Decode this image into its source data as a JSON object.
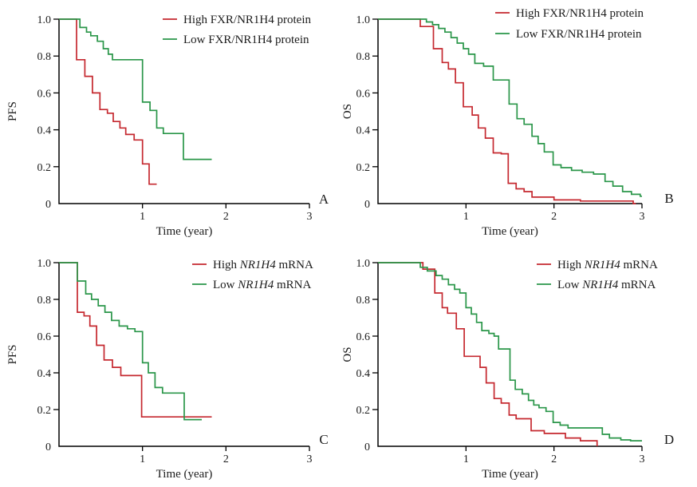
{
  "figure": {
    "background": "#ffffff",
    "axis_color": "#000000",
    "x_axis_label": "Time (year)",
    "series_colors": {
      "high": "#c5282f",
      "low": "#2a9649"
    }
  },
  "chart_data": [
    {
      "id": "A",
      "type": "line",
      "variant": "kaplan_meier_step",
      "panel_label": "A",
      "xlabel": "Time (year)",
      "ylabel": "PFS",
      "xlim": [
        0,
        3
      ],
      "ylim": [
        0,
        1
      ],
      "grid": false,
      "legend_position": "top-right-inside",
      "xticks": [
        "1",
        "2",
        "3"
      ],
      "yticks": [
        "0",
        "0.2",
        "0.4",
        "0.6",
        "0.8",
        "1.0"
      ],
      "legend": [
        {
          "name": "High FXR/NR1H4 protein",
          "color": "#c5282f",
          "parts": [
            {
              "text": "High FXR/NR1H4 protein",
              "italic": false
            }
          ]
        },
        {
          "name": "Low FXR/NR1H4 protein",
          "color": "#2a9649",
          "parts": [
            {
              "text": "Low FXR/NR1H4 protein",
              "italic": false
            }
          ]
        }
      ],
      "series": [
        {
          "key": "high",
          "name": "High FXR/NR1H4 protein",
          "color": "#c5282f",
          "end": 1.17,
          "points": [
            [
              0,
              1.0
            ],
            [
              0.21,
              0.78
            ],
            [
              0.31,
              0.69
            ],
            [
              0.4,
              0.6
            ],
            [
              0.49,
              0.51
            ],
            [
              0.58,
              0.49
            ],
            [
              0.65,
              0.445
            ],
            [
              0.73,
              0.41
            ],
            [
              0.8,
              0.375
            ],
            [
              0.9,
              0.345
            ],
            [
              1.0,
              0.215
            ],
            [
              1.08,
              0.105
            ]
          ]
        },
        {
          "key": "low",
          "name": "Low FXR/NR1H4 protein",
          "color": "#2a9649",
          "end": 1.83,
          "points": [
            [
              0,
              1.0
            ],
            [
              0.25,
              0.955
            ],
            [
              0.33,
              0.93
            ],
            [
              0.38,
              0.91
            ],
            [
              0.46,
              0.88
            ],
            [
              0.53,
              0.84
            ],
            [
              0.59,
              0.81
            ],
            [
              0.64,
              0.78
            ],
            [
              1.0,
              0.55
            ],
            [
              1.09,
              0.505
            ],
            [
              1.17,
              0.41
            ],
            [
              1.25,
              0.38
            ],
            [
              1.49,
              0.24
            ]
          ]
        }
      ]
    },
    {
      "id": "B",
      "type": "line",
      "variant": "kaplan_meier_step",
      "panel_label": "B",
      "xlabel": "Time (year)",
      "ylabel": "OS",
      "xlim": [
        0,
        3
      ],
      "ylim": [
        0,
        1
      ],
      "grid": false,
      "legend_position": "top-right-inside",
      "xticks": [
        "1",
        "2",
        "3"
      ],
      "yticks": [
        "0",
        "0.2",
        "0.4",
        "0.6",
        "0.8",
        "1.0"
      ],
      "legend": [
        {
          "name": "High FXR/NR1H4 protein",
          "color": "#c5282f",
          "parts": [
            {
              "text": "High FXR/NR1H4 protein",
              "italic": false
            }
          ]
        },
        {
          "name": "Low FXR/NR1H4 protein",
          "color": "#2a9649",
          "parts": [
            {
              "text": "Low FXR/NR1H4 protein",
              "italic": false
            }
          ]
        }
      ],
      "series": [
        {
          "key": "high",
          "name": "High FXR/NR1H4 protein",
          "color": "#c5282f",
          "end": 2.93,
          "points": [
            [
              0,
              1.0
            ],
            [
              0.48,
              0.96
            ],
            [
              0.63,
              0.84
            ],
            [
              0.73,
              0.765
            ],
            [
              0.8,
              0.73
            ],
            [
              0.88,
              0.655
            ],
            [
              0.97,
              0.525
            ],
            [
              1.07,
              0.48
            ],
            [
              1.14,
              0.41
            ],
            [
              1.22,
              0.355
            ],
            [
              1.31,
              0.275
            ],
            [
              1.4,
              0.27
            ],
            [
              1.48,
              0.11
            ],
            [
              1.57,
              0.08
            ],
            [
              1.66,
              0.065
            ],
            [
              1.75,
              0.035
            ],
            [
              2.0,
              0.02
            ],
            [
              2.3,
              0.014
            ],
            [
              2.9,
              0.0
            ]
          ]
        },
        {
          "key": "low",
          "name": "Low FXR/NR1H4 protein",
          "color": "#2a9649",
          "end": 3.0,
          "points": [
            [
              0,
              1.0
            ],
            [
              0.55,
              0.985
            ],
            [
              0.62,
              0.97
            ],
            [
              0.69,
              0.95
            ],
            [
              0.76,
              0.93
            ],
            [
              0.83,
              0.9
            ],
            [
              0.9,
              0.87
            ],
            [
              0.97,
              0.84
            ],
            [
              1.03,
              0.81
            ],
            [
              1.1,
              0.76
            ],
            [
              1.2,
              0.745
            ],
            [
              1.31,
              0.67
            ],
            [
              1.49,
              0.54
            ],
            [
              1.58,
              0.46
            ],
            [
              1.66,
              0.43
            ],
            [
              1.75,
              0.365
            ],
            [
              1.82,
              0.325
            ],
            [
              1.89,
              0.28
            ],
            [
              1.99,
              0.21
            ],
            [
              2.08,
              0.195
            ],
            [
              2.2,
              0.18
            ],
            [
              2.32,
              0.17
            ],
            [
              2.45,
              0.16
            ],
            [
              2.58,
              0.12
            ],
            [
              2.67,
              0.095
            ],
            [
              2.78,
              0.065
            ],
            [
              2.88,
              0.05
            ],
            [
              2.98,
              0.04
            ]
          ]
        }
      ]
    },
    {
      "id": "C",
      "type": "line",
      "variant": "kaplan_meier_step",
      "panel_label": "C",
      "xlabel": "Time (year)",
      "ylabel": "PFS",
      "xlim": [
        0,
        3
      ],
      "ylim": [
        0,
        1
      ],
      "grid": false,
      "legend_position": "top-right-inside",
      "xticks": [
        "1",
        "2",
        "3"
      ],
      "yticks": [
        "0",
        "0.2",
        "0.4",
        "0.6",
        "0.8",
        "1.0"
      ],
      "legend": [
        {
          "name": "High NR1H4 mRNA",
          "color": "#c5282f",
          "parts": [
            {
              "text": "High ",
              "italic": false
            },
            {
              "text": "NR1H4",
              "italic": true
            },
            {
              "text": " mRNA",
              "italic": false
            }
          ]
        },
        {
          "name": "Low NR1H4 mRNA",
          "color": "#2a9649",
          "parts": [
            {
              "text": "Low ",
              "italic": false
            },
            {
              "text": "NR1H4",
              "italic": true
            },
            {
              "text": " mRNA",
              "italic": false
            }
          ]
        }
      ],
      "series": [
        {
          "key": "high",
          "name": "High NR1H4 mRNA",
          "color": "#c5282f",
          "end": 1.83,
          "points": [
            [
              0,
              1.0
            ],
            [
              0.22,
              0.73
            ],
            [
              0.3,
              0.71
            ],
            [
              0.37,
              0.655
            ],
            [
              0.45,
              0.55
            ],
            [
              0.54,
              0.47
            ],
            [
              0.64,
              0.43
            ],
            [
              0.74,
              0.385
            ],
            [
              0.99,
              0.16
            ]
          ]
        },
        {
          "key": "low",
          "name": "Low NR1H4 mRNA",
          "color": "#2a9649",
          "end": 1.71,
          "points": [
            [
              0,
              1.0
            ],
            [
              0.22,
              0.9
            ],
            [
              0.32,
              0.83
            ],
            [
              0.39,
              0.8
            ],
            [
              0.47,
              0.765
            ],
            [
              0.55,
              0.73
            ],
            [
              0.63,
              0.685
            ],
            [
              0.72,
              0.655
            ],
            [
              0.82,
              0.64
            ],
            [
              0.91,
              0.625
            ],
            [
              1.0,
              0.455
            ],
            [
              1.07,
              0.4
            ],
            [
              1.15,
              0.32
            ],
            [
              1.24,
              0.29
            ],
            [
              1.5,
              0.145
            ]
          ]
        }
      ]
    },
    {
      "id": "D",
      "type": "line",
      "variant": "kaplan_meier_step",
      "panel_label": "D",
      "xlabel": "Time (year)",
      "ylabel": "OS",
      "xlim": [
        0,
        3
      ],
      "ylim": [
        0,
        1
      ],
      "grid": false,
      "legend_position": "top-right-inside",
      "xticks": [
        "1",
        "2",
        "3"
      ],
      "yticks": [
        "0",
        "0.2",
        "0.4",
        "0.6",
        "0.8",
        "1.0"
      ],
      "legend": [
        {
          "name": "High NR1H4 mRNA",
          "color": "#c5282f",
          "parts": [
            {
              "text": "High ",
              "italic": false
            },
            {
              "text": "NR1H4",
              "italic": true
            },
            {
              "text": " mRNA",
              "italic": false
            }
          ]
        },
        {
          "name": "Low NR1H4 mRNA",
          "color": "#2a9649",
          "parts": [
            {
              "text": "Low ",
              "italic": false
            },
            {
              "text": "NR1H4",
              "italic": true
            },
            {
              "text": " mRNA",
              "italic": false
            }
          ]
        }
      ],
      "series": [
        {
          "key": "high",
          "name": "High NR1H4 mRNA",
          "color": "#c5282f",
          "end": 2.49,
          "points": [
            [
              0,
              1.0
            ],
            [
              0.51,
              0.965
            ],
            [
              0.645,
              0.835
            ],
            [
              0.73,
              0.755
            ],
            [
              0.79,
              0.725
            ],
            [
              0.89,
              0.64
            ],
            [
              0.98,
              0.49
            ],
            [
              1.16,
              0.43
            ],
            [
              1.23,
              0.345
            ],
            [
              1.32,
              0.26
            ],
            [
              1.4,
              0.235
            ],
            [
              1.49,
              0.17
            ],
            [
              1.57,
              0.15
            ],
            [
              1.74,
              0.085
            ],
            [
              1.89,
              0.07
            ],
            [
              2.13,
              0.045
            ],
            [
              2.3,
              0.03
            ],
            [
              2.49,
              0.0
            ]
          ]
        },
        {
          "key": "low",
          "name": "Low NR1H4 mRNA",
          "color": "#2a9649",
          "end": 3.0,
          "points": [
            [
              0,
              1.0
            ],
            [
              0.48,
              0.975
            ],
            [
              0.56,
              0.955
            ],
            [
              0.66,
              0.93
            ],
            [
              0.73,
              0.91
            ],
            [
              0.8,
              0.88
            ],
            [
              0.87,
              0.855
            ],
            [
              0.93,
              0.835
            ],
            [
              1.0,
              0.755
            ],
            [
              1.06,
              0.72
            ],
            [
              1.12,
              0.675
            ],
            [
              1.18,
              0.63
            ],
            [
              1.26,
              0.615
            ],
            [
              1.32,
              0.6
            ],
            [
              1.37,
              0.53
            ],
            [
              1.5,
              0.36
            ],
            [
              1.56,
              0.31
            ],
            [
              1.64,
              0.285
            ],
            [
              1.71,
              0.25
            ],
            [
              1.77,
              0.225
            ],
            [
              1.83,
              0.21
            ],
            [
              1.91,
              0.19
            ],
            [
              1.99,
              0.13
            ],
            [
              2.07,
              0.115
            ],
            [
              2.16,
              0.1
            ],
            [
              2.55,
              0.065
            ],
            [
              2.63,
              0.045
            ],
            [
              2.76,
              0.035
            ],
            [
              2.87,
              0.03
            ]
          ]
        }
      ]
    }
  ]
}
